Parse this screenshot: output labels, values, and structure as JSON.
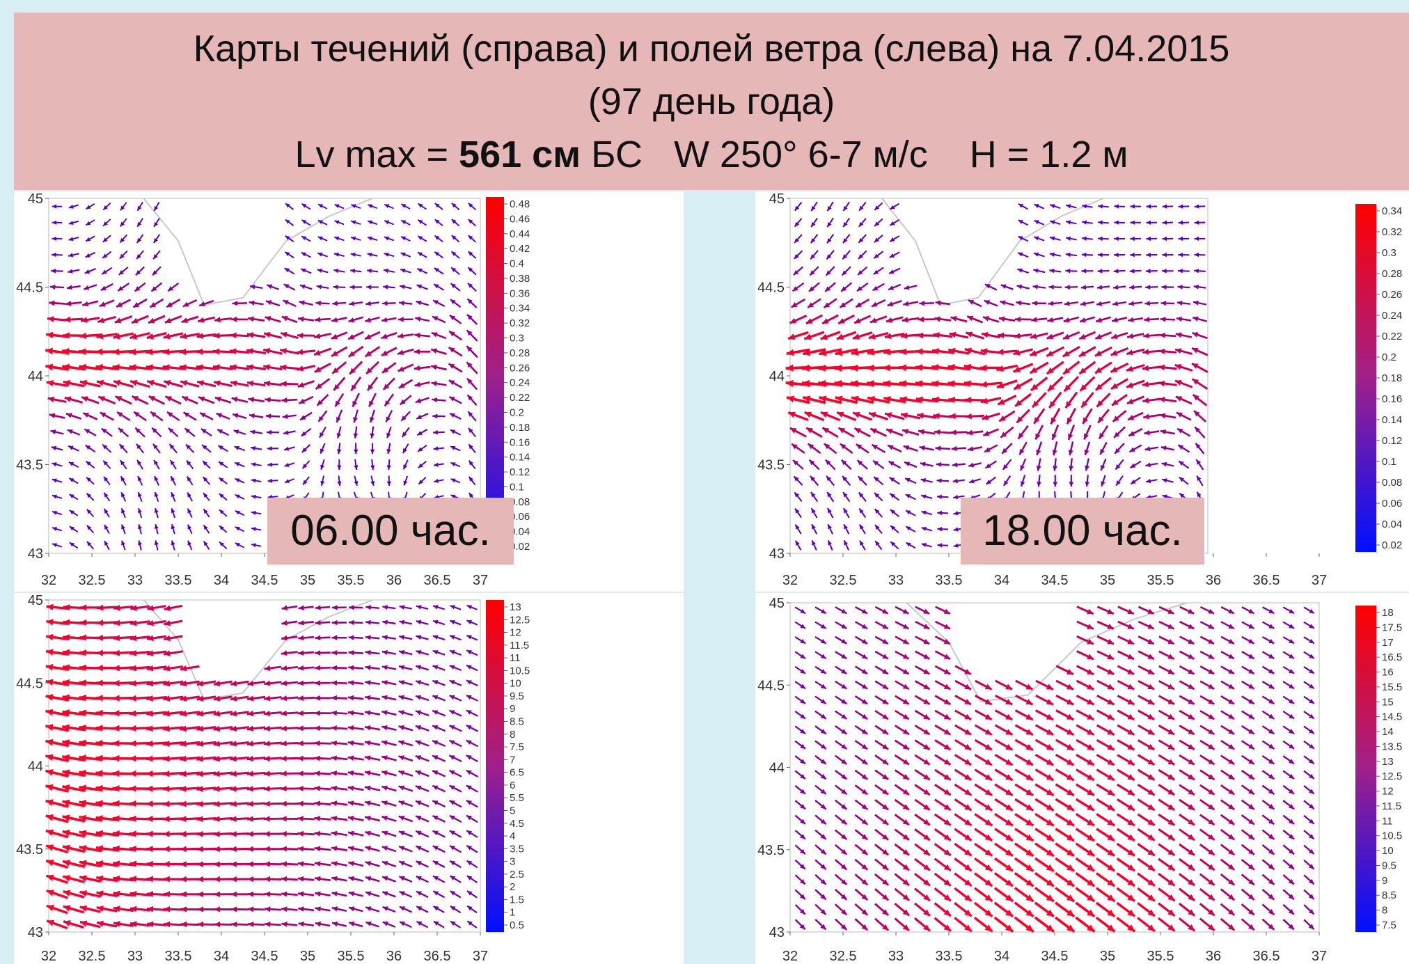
{
  "header": {
    "line1": "Карты течений (справа) и полей ветра (слева) на 7.04.2015",
    "line2": "(97 день года)",
    "line3_pre": "Lv max = ",
    "line3_bold": "561 см",
    "line3_post": " БС   W 250° 6-7 м/с    H = 1.2 м"
  },
  "time_labels": {
    "left": "06.00 час.",
    "right": "18.00 час."
  },
  "colors": {
    "low": "#0000ff",
    "high": "#ff0000",
    "header_bg": "#e6b7b7",
    "page_bg": "#d6eef4"
  },
  "panels": [
    {
      "id": "tl",
      "x_ticks": [
        "32",
        "32.5",
        "33",
        "33.5",
        "34",
        "34.5",
        "35",
        "35.5",
        "36",
        "36.5",
        "37"
      ],
      "y_ticks": [
        "45",
        "44.5",
        "44",
        "43.5",
        "43"
      ],
      "colorbar": [
        "0.48",
        "0.46",
        "0.44",
        "0.42",
        "0.4",
        "0.38",
        "0.36",
        "0.34",
        "0.32",
        "0.3",
        "0.28",
        "0.26",
        "0.24",
        "0.22",
        "0.2",
        "0.18",
        "0.16",
        "0.14",
        "0.12",
        "0.1",
        "0.08",
        "0.06",
        "0.04",
        "0.02"
      ]
    },
    {
      "id": "tr",
      "x_ticks": [
        "32",
        "32.5",
        "33",
        "33.5",
        "34",
        "34.5",
        "35",
        "35.5",
        "36",
        "36.5",
        "37"
      ],
      "y_ticks": [
        "45",
        "44.5",
        "44",
        "43.5",
        "43"
      ],
      "colorbar": [
        "0.34",
        "0.32",
        "0.3",
        "0.28",
        "0.26",
        "0.24",
        "0.22",
        "0.2",
        "0.18",
        "0.16",
        "0.14",
        "0.12",
        "0.1",
        "0.08",
        "0.06",
        "0.04",
        "0.02"
      ]
    },
    {
      "id": "bl",
      "x_ticks": [
        "32",
        "32.5",
        "33",
        "33.5",
        "34",
        "34.5",
        "35",
        "35.5",
        "36",
        "36.5",
        "37"
      ],
      "y_ticks": [
        "45",
        "44.5",
        "44",
        "43.5",
        "43"
      ],
      "colorbar": [
        "13",
        "12.5",
        "12",
        "11.5",
        "11",
        "10.5",
        "10",
        "9.5",
        "9",
        "8.5",
        "8",
        "7.5",
        "7",
        "6.5",
        "6",
        "5.5",
        "5",
        "4.5",
        "4",
        "3.5",
        "3",
        "2.5",
        "2",
        "1.5",
        "1",
        "0.5"
      ]
    },
    {
      "id": "br",
      "x_ticks": [
        "32",
        "32.5",
        "33",
        "33.5",
        "34",
        "34.5",
        "35",
        "35.5",
        "36",
        "36.5",
        "37"
      ],
      "y_ticks": [
        "45",
        "44.5",
        "44",
        "43.5",
        "43"
      ],
      "colorbar": [
        "18",
        "17.5",
        "17",
        "16.5",
        "16",
        "15.5",
        "15",
        "14.5",
        "14",
        "13.5",
        "13",
        "12.5",
        "12",
        "11.5",
        "11",
        "10.5",
        "10",
        "9.5",
        "9",
        "8.5",
        "8",
        "7.5"
      ]
    }
  ]
}
